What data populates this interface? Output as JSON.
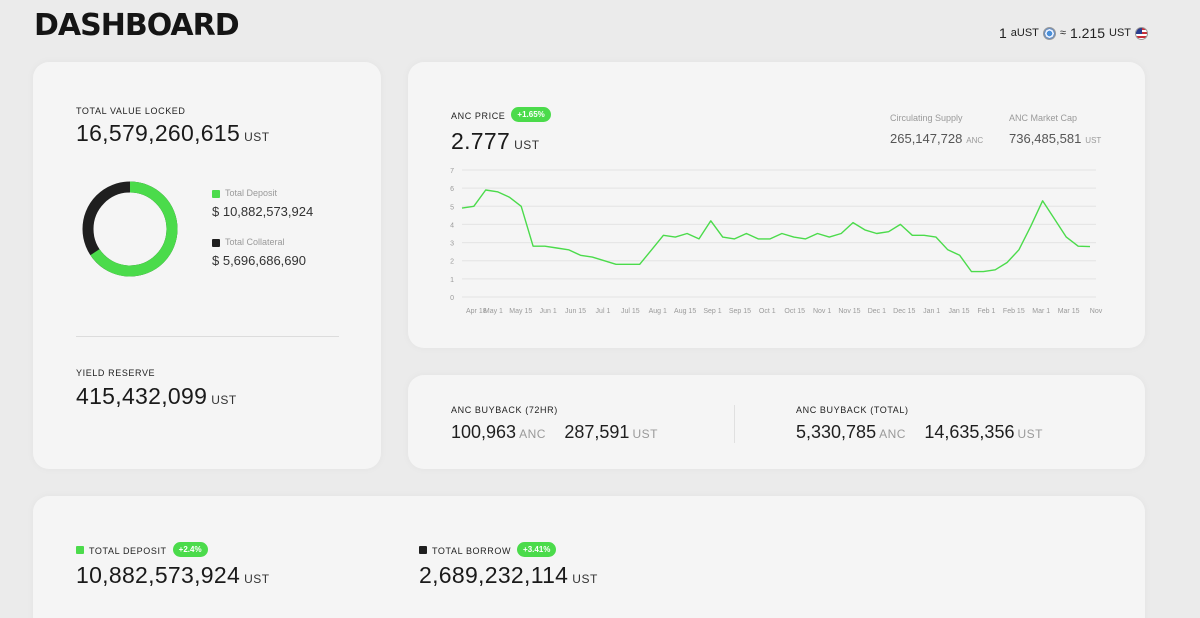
{
  "header": {
    "title": "DASHBOARD",
    "rate": {
      "left_amount": "1",
      "left_unit": "aUST",
      "approx": "≈",
      "right_amount": "1.215",
      "right_unit": "UST"
    }
  },
  "tvl_card": {
    "label": "TOTAL VALUE LOCKED",
    "value": "16,579,260,615",
    "unit": "UST",
    "deposit_label": "Total Deposit",
    "deposit_value": "$ 10,882,573,924",
    "collateral_label": "Total Collateral",
    "collateral_value": "$ 5,696,686,690",
    "deposit_fraction": 0.656,
    "yield_label": "YIELD RESERVE",
    "yield_value": "415,432,099",
    "yield_unit": "UST"
  },
  "price_card": {
    "label": "ANC PRICE",
    "badge": "+1.65%",
    "value": "2.777",
    "unit": "UST",
    "supply_label": "Circulating Supply",
    "supply_value": "265,147,728",
    "supply_unit": "ANC",
    "cap_label": "ANC Market Cap",
    "cap_value": "736,485,581",
    "cap_unit": "UST"
  },
  "buyback_card": {
    "label_72": "ANC BUYBACK (72HR)",
    "v72_anc": "100,963",
    "u72_anc": "ANC",
    "v72_ust": "287,591",
    "u72_ust": "UST",
    "label_total": "ANC BUYBACK (TOTAL)",
    "vt_anc": "5,330,785",
    "ut_anc": "ANC",
    "vt_ust": "14,635,356",
    "ut_ust": "UST"
  },
  "bottom_card": {
    "deposit_label": "TOTAL DEPOSIT",
    "deposit_badge": "+2.4%",
    "deposit_value": "10,882,573,924",
    "deposit_unit": "UST",
    "borrow_label": "TOTAL BORROW",
    "borrow_badge": "+3.41%",
    "borrow_value": "2,689,232,114",
    "borrow_unit": "UST"
  },
  "colors": {
    "accent": "#4bdb4b",
    "dark": "#1f1f1f",
    "card": "#f5f5f5",
    "bg": "#ebebeb"
  },
  "chart_data": {
    "type": "line",
    "ylim": [
      0,
      7
    ],
    "yticks": [
      "0",
      "1",
      "2",
      "3",
      "4",
      "5",
      "6",
      "7"
    ],
    "xticks": [
      "Apr 18",
      "May 1",
      "May 15",
      "Jun 1",
      "Jun 15",
      "Jul 1",
      "Jul 15",
      "Aug 1",
      "Aug 15",
      "Sep 1",
      "Sep 15",
      "Oct 1",
      "Oct 15",
      "Nov 1",
      "Nov 15",
      "Dec 1",
      "Dec 15",
      "Jan 1",
      "Jan 15",
      "Feb 1",
      "Feb 15",
      "Mar 1",
      "Mar 15",
      "Nov"
    ],
    "series": [
      {
        "color": "#4bdb4b",
        "x": [
          "2021-03-18",
          "2021-03-25",
          "2021-04-01",
          "2021-04-08",
          "2021-04-15",
          "2021-04-22",
          "2021-04-29",
          "2021-05-06",
          "2021-05-13",
          "2021-05-20",
          "2021-05-27",
          "2021-06-03",
          "2021-06-10",
          "2021-06-17",
          "2021-06-24",
          "2021-07-01",
          "2021-07-08",
          "2021-07-15",
          "2021-07-22",
          "2021-07-29",
          "2021-08-05",
          "2021-08-12",
          "2021-08-19",
          "2021-08-26",
          "2021-09-02",
          "2021-09-09",
          "2021-09-16",
          "2021-09-23",
          "2021-09-30",
          "2021-10-07",
          "2021-10-14",
          "2021-10-21",
          "2021-10-28",
          "2021-11-04",
          "2021-11-11",
          "2021-11-18",
          "2021-11-25",
          "2021-12-02",
          "2021-12-09",
          "2021-12-16",
          "2021-12-23",
          "2021-12-30",
          "2022-01-06",
          "2022-01-13",
          "2022-01-20",
          "2022-01-27",
          "2022-02-03",
          "2022-02-10",
          "2022-02-17",
          "2022-02-24",
          "2022-03-03",
          "2022-03-10",
          "2022-03-17",
          "2022-03-24"
        ],
        "values": [
          4.9,
          5.0,
          5.9,
          5.8,
          5.5,
          5.0,
          2.8,
          2.8,
          2.7,
          2.6,
          2.3,
          2.2,
          2.0,
          1.8,
          1.8,
          1.8,
          2.6,
          3.4,
          3.3,
          3.5,
          3.2,
          4.2,
          3.3,
          3.2,
          3.5,
          3.2,
          3.2,
          3.5,
          3.3,
          3.2,
          3.5,
          3.3,
          3.5,
          4.1,
          3.7,
          3.5,
          3.6,
          4.0,
          3.4,
          3.4,
          3.3,
          2.6,
          2.3,
          1.4,
          1.4,
          1.5,
          1.9,
          2.6,
          3.9,
          5.3,
          4.3,
          3.3,
          2.8,
          2.777
        ]
      }
    ],
    "grid": true
  }
}
